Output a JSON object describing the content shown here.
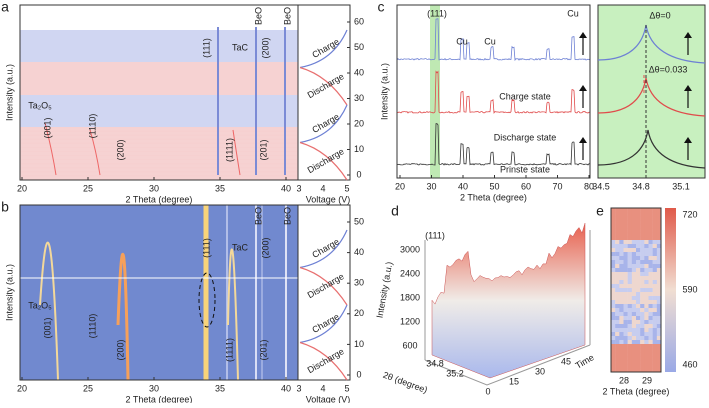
{
  "panels": [
    {
      "letter": "a",
      "ylabel": "Intensity (a.u.)",
      "xlabel": "2 Theta (degree)",
      "xticks": [
        20,
        25,
        30,
        35,
        40
      ],
      "voltage_label": "Voltage (V)",
      "voltage_ticks": [
        3,
        4,
        5
      ],
      "time_ticks": [
        0,
        10,
        20,
        30,
        40,
        50,
        60
      ],
      "states": [
        "Charge",
        "Discharge",
        "Charge",
        "Discharge"
      ],
      "annotations": [
        "TaC",
        "(111)",
        "BeO",
        "BeO",
        "(200)",
        "Ta₂O₅",
        "(001)",
        "(1110)",
        "(200)",
        "(1111)",
        "(201)"
      ]
    },
    {
      "letter": "b",
      "ylabel": "Intensity (a.u.)",
      "xlabel": "2 Theta (degree)",
      "xticks": [
        20,
        25,
        30,
        35,
        40
      ],
      "voltage_label": "Voltage (V)",
      "voltage_ticks": [
        3,
        4,
        5
      ],
      "time_ticks": [
        0,
        10,
        20,
        30,
        40,
        50
      ],
      "states": [
        "Charge",
        "Discharge",
        "Charge",
        "Discharge"
      ],
      "annotations": [
        "TaC",
        "(111)",
        "BeO",
        "BeO",
        "(200)",
        "Ta₂O₅",
        "(001)",
        "(1110)",
        "(200)",
        "(1111)",
        "(201)"
      ]
    },
    {
      "letter": "c",
      "xlabel": "2 Theta (degree)",
      "ylabel": "Intensity (a.u.)",
      "xticks": [
        20,
        30,
        40,
        50,
        60,
        70,
        80
      ],
      "zoom_xticks": [
        34.5,
        34.8,
        35.1
      ],
      "annotations": [
        "(111)",
        "Cu",
        "Cu",
        "Cu"
      ],
      "traces": [
        "Charge state",
        "Discharge state",
        "Prinste state"
      ],
      "shifts": [
        "Δθ=0",
        "Δθ=0.033"
      ]
    },
    {
      "letter": "d",
      "label": "(111)",
      "zlabel": "Intensity (a.u.)",
      "zticks": [
        600,
        1200,
        1800,
        2400,
        3000
      ],
      "xlabel": "2θ (degree)",
      "xticks": [
        34.8,
        35.2
      ],
      "tlabel": "Time",
      "tticks": [
        0,
        15,
        30,
        45
      ]
    },
    {
      "letter": "e",
      "xlabel": "2 Theta (degree)",
      "xticks": [
        28,
        29
      ],
      "colorbar_ticks": [
        720,
        590,
        460
      ]
    }
  ]
}
